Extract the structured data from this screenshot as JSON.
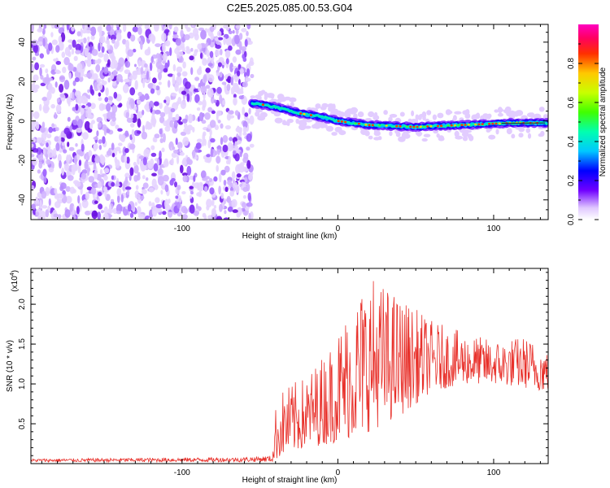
{
  "title": "C2E5.2025.085.00.53.G04",
  "chart_data": [
    {
      "type": "heatmap",
      "xlabel": "Height of straight line (km)",
      "ylabel": "Frequency (Hz)",
      "xlim": [
        -197,
        135
      ],
      "ylim": [
        -50,
        49
      ],
      "xticks": [
        -100,
        0,
        100
      ],
      "yticks": [
        -40,
        -20,
        0,
        20,
        40
      ],
      "noise_region_x": [
        -197,
        -55
      ],
      "ridge": [
        {
          "x": -55,
          "y": 9
        },
        {
          "x": -45,
          "y": 8
        },
        {
          "x": -35,
          "y": 6
        },
        {
          "x": -25,
          "y": 4
        },
        {
          "x": -10,
          "y": 2
        },
        {
          "x": 0,
          "y": 0
        },
        {
          "x": 20,
          "y": -2
        },
        {
          "x": 50,
          "y": -3
        },
        {
          "x": 80,
          "y": -2
        },
        {
          "x": 110,
          "y": -1
        },
        {
          "x": 133,
          "y": -1
        }
      ],
      "colorbar": {
        "label": "Normalized spectral amplitude",
        "range": [
          0,
          1
        ],
        "ticks": [
          "0.0",
          "0.2",
          "0.4",
          "0.6",
          "0.8"
        ]
      }
    },
    {
      "type": "line",
      "xlabel": "Height of straight line (km)",
      "ylabel": "SNR (10 * v/v)",
      "yscale_label": "(x10",
      "yscale_exp": "4",
      "xlim": [
        -197,
        135
      ],
      "ylim": [
        0,
        2.45
      ],
      "xticks": [
        -100,
        0,
        100
      ],
      "yticks": [
        "0.5",
        "1.0",
        "1.5",
        "2.0"
      ],
      "color": "#e8302a",
      "envelope": [
        {
          "x": -197,
          "lo": 0.02,
          "hi": 0.06
        },
        {
          "x": -60,
          "lo": 0.02,
          "hi": 0.08
        },
        {
          "x": -42,
          "lo": 0.02,
          "hi": 0.1
        },
        {
          "x": -40,
          "lo": 0.05,
          "hi": 0.7
        },
        {
          "x": -35,
          "lo": 0.1,
          "hi": 0.95
        },
        {
          "x": -20,
          "lo": 0.2,
          "hi": 1.1
        },
        {
          "x": -5,
          "lo": 0.25,
          "hi": 1.5
        },
        {
          "x": 5,
          "lo": 0.3,
          "hi": 1.9
        },
        {
          "x": 20,
          "lo": 0.4,
          "hi": 2.4
        },
        {
          "x": 40,
          "lo": 0.6,
          "hi": 2.1
        },
        {
          "x": 60,
          "lo": 0.9,
          "hi": 1.8
        },
        {
          "x": 80,
          "lo": 1.0,
          "hi": 1.65
        },
        {
          "x": 100,
          "lo": 1.0,
          "hi": 1.55
        },
        {
          "x": 120,
          "lo": 0.95,
          "hi": 1.6
        },
        {
          "x": 135,
          "lo": 0.9,
          "hi": 1.45
        }
      ]
    }
  ]
}
